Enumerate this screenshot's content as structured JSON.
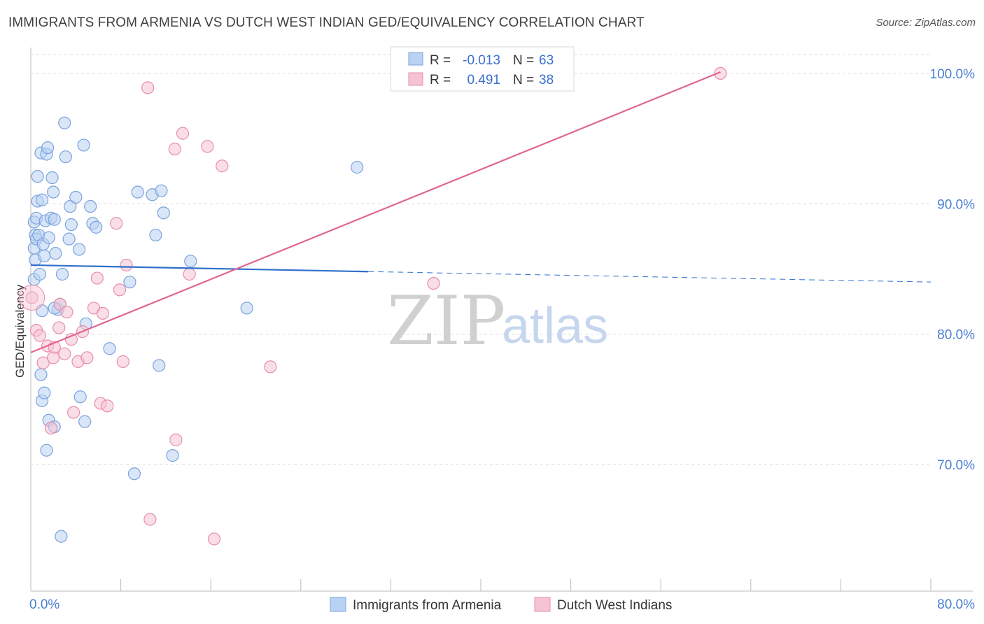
{
  "title": "IMMIGRANTS FROM ARMENIA VS DUTCH WEST INDIAN GED/EQUIVALENCY CORRELATION CHART",
  "source": "Source: ZipAtlas.com",
  "watermark": {
    "zip": "ZIP",
    "atlas": "atlas"
  },
  "colors": {
    "blue_fill": "#b9d1f3",
    "blue_stroke": "#7aa3dd",
    "blue_line": "#2f6fcc",
    "pink_fill": "#f6c3d3",
    "pink_stroke": "#e88eab",
    "pink_line": "#e0668f",
    "grid": "#dcdcdc",
    "tick_text": "#4a7fd0"
  },
  "stats": {
    "r_label": "R =",
    "n_label": "N =",
    "rows": [
      {
        "series": "Immigrants from Armenia",
        "r": "-0.013",
        "n": "63"
      },
      {
        "series": "Dutch West Indians",
        "r": "0.491",
        "n": "38"
      }
    ]
  },
  "legend": [
    "Immigrants from Armenia",
    "Dutch West Indians"
  ],
  "chart_data": {
    "type": "scatter",
    "title": "IMMIGRANTS FROM ARMENIA VS DUTCH WEST INDIAN GED/EQUIVALENCY CORRELATION CHART",
    "xlabel": "",
    "ylabel": "GED/Equivalency",
    "xlim": [
      0,
      80
    ],
    "ylim": [
      60.3,
      102.3
    ],
    "x_tick_labels": [
      {
        "value": 0,
        "label": "0.0%"
      },
      {
        "value": 80,
        "label": "80.0%"
      }
    ],
    "x_minor_ticks": [
      0,
      8,
      16,
      24,
      32,
      40,
      48,
      56,
      64,
      72,
      80
    ],
    "y_ticks": [
      {
        "value": 100,
        "label": "100.0%"
      },
      {
        "value": 90,
        "label": "90.0%"
      },
      {
        "value": 80,
        "label": "80.0%"
      },
      {
        "value": 70,
        "label": "70.0%"
      }
    ],
    "series": [
      {
        "name": "Immigrants from Armenia",
        "color": "blue",
        "points": [
          [
            0.3,
            88.6
          ],
          [
            0.3,
            86.6
          ],
          [
            0.4,
            85.7
          ],
          [
            0.3,
            84.2
          ],
          [
            0.4,
            87.6
          ],
          [
            0.5,
            88.9
          ],
          [
            0.5,
            87.3
          ],
          [
            0.6,
            92.1
          ],
          [
            0.6,
            90.2
          ],
          [
            0.7,
            87.6
          ],
          [
            0.8,
            84.6
          ],
          [
            0.9,
            93.9
          ],
          [
            1.0,
            90.3
          ],
          [
            1.1,
            86.9
          ],
          [
            1.2,
            86.0
          ],
          [
            1.3,
            88.7
          ],
          [
            1.4,
            93.8
          ],
          [
            1.5,
            94.3
          ],
          [
            1.6,
            87.4
          ],
          [
            1.8,
            88.9
          ],
          [
            1.9,
            92.0
          ],
          [
            2.0,
            90.9
          ],
          [
            2.1,
            88.8
          ],
          [
            2.2,
            86.2
          ],
          [
            2.4,
            81.9
          ],
          [
            2.6,
            82.3
          ],
          [
            2.8,
            84.6
          ],
          [
            3.0,
            96.2
          ],
          [
            3.1,
            93.6
          ],
          [
            3.4,
            87.3
          ],
          [
            3.5,
            89.8
          ],
          [
            3.6,
            88.4
          ],
          [
            4.0,
            90.5
          ],
          [
            4.3,
            86.5
          ],
          [
            4.7,
            94.5
          ],
          [
            5.3,
            89.8
          ],
          [
            5.5,
            88.5
          ],
          [
            5.8,
            88.2
          ],
          [
            0.9,
            76.9
          ],
          [
            1.0,
            74.9
          ],
          [
            1.2,
            75.5
          ],
          [
            1.4,
            71.1
          ],
          [
            1.6,
            73.4
          ],
          [
            2.1,
            72.9
          ],
          [
            2.7,
            64.5
          ],
          [
            4.4,
            75.2
          ],
          [
            4.8,
            73.3
          ],
          [
            4.9,
            80.8
          ],
          [
            7.0,
            78.9
          ],
          [
            8.8,
            84.0
          ],
          [
            9.2,
            69.3
          ],
          [
            9.5,
            90.9
          ],
          [
            10.8,
            90.7
          ],
          [
            11.1,
            87.6
          ],
          [
            11.6,
            91.0
          ],
          [
            11.8,
            89.3
          ],
          [
            11.4,
            77.6
          ],
          [
            12.6,
            70.7
          ],
          [
            14.2,
            85.6
          ],
          [
            19.2,
            82.0
          ],
          [
            29.0,
            92.8
          ],
          [
            2.1,
            82.0
          ],
          [
            1.0,
            81.8
          ]
        ]
      },
      {
        "name": "Dutch West Indians",
        "color": "pink",
        "points": [
          [
            0.1,
            82.8
          ],
          [
            0.5,
            80.3
          ],
          [
            0.8,
            79.9
          ],
          [
            1.1,
            77.8
          ],
          [
            1.5,
            79.1
          ],
          [
            2.0,
            78.2
          ],
          [
            2.1,
            79.0
          ],
          [
            2.6,
            82.3
          ],
          [
            3.2,
            81.7
          ],
          [
            3.6,
            79.6
          ],
          [
            3.8,
            74.0
          ],
          [
            4.2,
            77.9
          ],
          [
            4.6,
            80.2
          ],
          [
            5.0,
            78.2
          ],
          [
            5.6,
            82.0
          ],
          [
            5.9,
            84.3
          ],
          [
            6.2,
            74.7
          ],
          [
            6.4,
            81.6
          ],
          [
            6.8,
            74.5
          ],
          [
            7.6,
            88.5
          ],
          [
            7.9,
            83.4
          ],
          [
            8.2,
            77.9
          ],
          [
            8.5,
            85.3
          ],
          [
            10.4,
            98.9
          ],
          [
            10.6,
            65.8
          ],
          [
            12.8,
            94.2
          ],
          [
            12.9,
            71.9
          ],
          [
            13.5,
            95.4
          ],
          [
            14.1,
            84.6
          ],
          [
            15.7,
            94.4
          ],
          [
            16.3,
            64.3
          ],
          [
            17.0,
            92.9
          ],
          [
            21.3,
            77.5
          ],
          [
            35.8,
            83.9
          ],
          [
            61.3,
            100.0
          ],
          [
            1.8,
            72.8
          ],
          [
            3.0,
            78.5
          ],
          [
            2.5,
            80.5
          ]
        ]
      }
    ],
    "trendlines": [
      {
        "series": "Immigrants from Armenia",
        "solid": [
          [
            0,
            85.3
          ],
          [
            30,
            84.8
          ]
        ],
        "dashed": [
          [
            30,
            84.8
          ],
          [
            80,
            84.0
          ]
        ]
      },
      {
        "series": "Dutch West Indians",
        "solid": [
          [
            0,
            78.6
          ],
          [
            61.3,
            100.1
          ]
        ]
      }
    ]
  }
}
